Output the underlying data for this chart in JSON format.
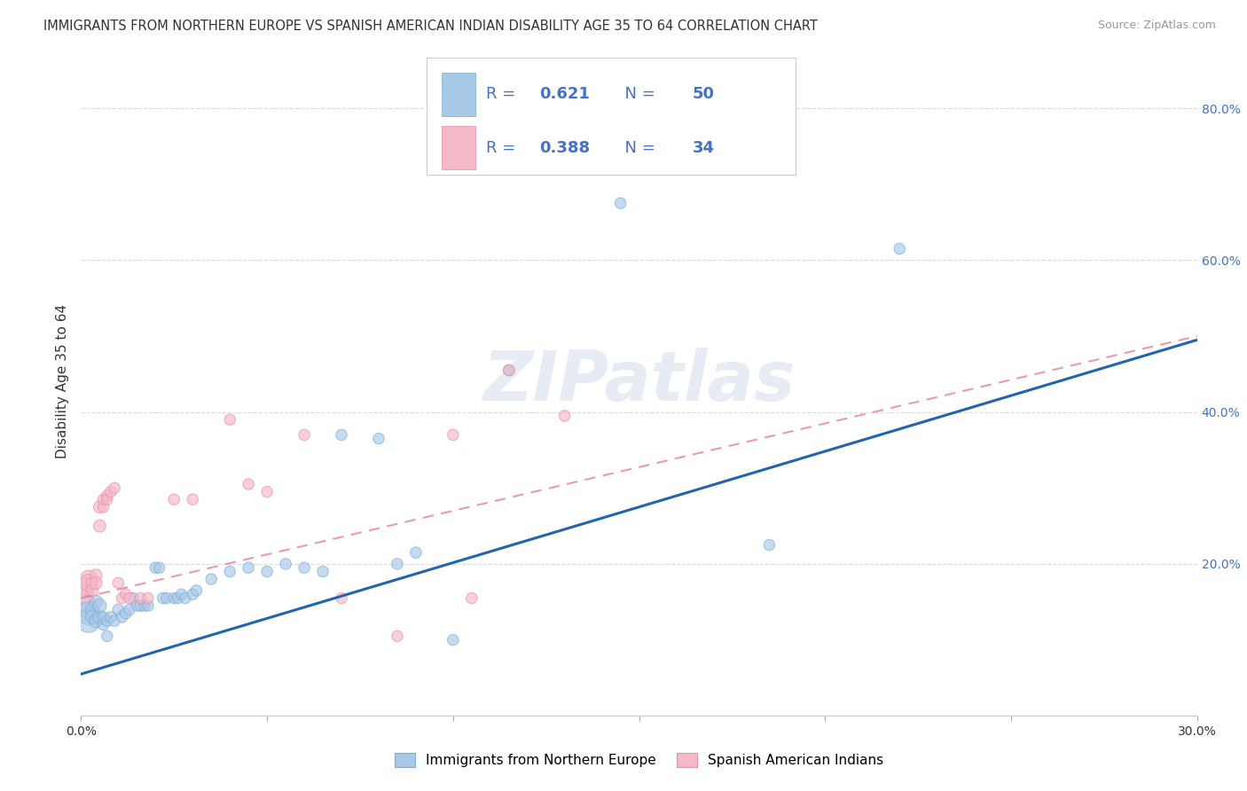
{
  "title": "IMMIGRANTS FROM NORTHERN EUROPE VS SPANISH AMERICAN INDIAN DISABILITY AGE 35 TO 64 CORRELATION CHART",
  "source": "Source: ZipAtlas.com",
  "ylabel": "Disability Age 35 to 64",
  "xlim": [
    0.0,
    0.3
  ],
  "ylim": [
    0.0,
    0.88
  ],
  "ytick_values": [
    0.0,
    0.2,
    0.4,
    0.6,
    0.8
  ],
  "xtick_values": [
    0.0,
    0.05,
    0.1,
    0.15,
    0.2,
    0.25,
    0.3
  ],
  "legend_label1": "Immigrants from Northern Europe",
  "legend_label2": "Spanish American Indians",
  "blue_color": "#a8c8e8",
  "blue_edge_color": "#7aafd4",
  "pink_color": "#f4b8c8",
  "pink_edge_color": "#e890a8",
  "blue_line_color": "#2166ac",
  "pink_line_color": "#e07090",
  "legend_text_color": "#4472c4",
  "ytick_color": "#4472c4",
  "watermark": "ZIPatlas",
  "background_color": "#ffffff",
  "grid_color": "#d8d8e8",
  "blue_scatter": [
    [
      0.001,
      0.145
    ],
    [
      0.002,
      0.135
    ],
    [
      0.002,
      0.125
    ],
    [
      0.003,
      0.14
    ],
    [
      0.003,
      0.13
    ],
    [
      0.004,
      0.125
    ],
    [
      0.004,
      0.15
    ],
    [
      0.005,
      0.13
    ],
    [
      0.005,
      0.145
    ],
    [
      0.006,
      0.12
    ],
    [
      0.006,
      0.13
    ],
    [
      0.007,
      0.125
    ],
    [
      0.007,
      0.105
    ],
    [
      0.008,
      0.13
    ],
    [
      0.009,
      0.125
    ],
    [
      0.01,
      0.14
    ],
    [
      0.011,
      0.13
    ],
    [
      0.012,
      0.135
    ],
    [
      0.013,
      0.14
    ],
    [
      0.014,
      0.155
    ],
    [
      0.015,
      0.145
    ],
    [
      0.016,
      0.145
    ],
    [
      0.017,
      0.145
    ],
    [
      0.018,
      0.145
    ],
    [
      0.02,
      0.195
    ],
    [
      0.021,
      0.195
    ],
    [
      0.022,
      0.155
    ],
    [
      0.023,
      0.155
    ],
    [
      0.025,
      0.155
    ],
    [
      0.026,
      0.155
    ],
    [
      0.027,
      0.16
    ],
    [
      0.028,
      0.155
    ],
    [
      0.03,
      0.16
    ],
    [
      0.031,
      0.165
    ],
    [
      0.035,
      0.18
    ],
    [
      0.04,
      0.19
    ],
    [
      0.045,
      0.195
    ],
    [
      0.05,
      0.19
    ],
    [
      0.055,
      0.2
    ],
    [
      0.06,
      0.195
    ],
    [
      0.065,
      0.19
    ],
    [
      0.07,
      0.37
    ],
    [
      0.08,
      0.365
    ],
    [
      0.085,
      0.2
    ],
    [
      0.09,
      0.215
    ],
    [
      0.1,
      0.1
    ],
    [
      0.115,
      0.455
    ],
    [
      0.145,
      0.675
    ],
    [
      0.185,
      0.225
    ],
    [
      0.22,
      0.615
    ]
  ],
  "pink_scatter": [
    [
      0.001,
      0.17
    ],
    [
      0.001,
      0.16
    ],
    [
      0.002,
      0.18
    ],
    [
      0.002,
      0.175
    ],
    [
      0.003,
      0.175
    ],
    [
      0.003,
      0.165
    ],
    [
      0.004,
      0.185
    ],
    [
      0.004,
      0.175
    ],
    [
      0.005,
      0.25
    ],
    [
      0.005,
      0.275
    ],
    [
      0.006,
      0.275
    ],
    [
      0.006,
      0.285
    ],
    [
      0.007,
      0.29
    ],
    [
      0.007,
      0.285
    ],
    [
      0.008,
      0.295
    ],
    [
      0.009,
      0.3
    ],
    [
      0.01,
      0.175
    ],
    [
      0.011,
      0.155
    ],
    [
      0.012,
      0.16
    ],
    [
      0.013,
      0.155
    ],
    [
      0.016,
      0.155
    ],
    [
      0.018,
      0.155
    ],
    [
      0.025,
      0.285
    ],
    [
      0.03,
      0.285
    ],
    [
      0.04,
      0.39
    ],
    [
      0.045,
      0.305
    ],
    [
      0.05,
      0.295
    ],
    [
      0.06,
      0.37
    ],
    [
      0.07,
      0.155
    ],
    [
      0.085,
      0.105
    ],
    [
      0.1,
      0.37
    ],
    [
      0.105,
      0.155
    ],
    [
      0.115,
      0.455
    ],
    [
      0.13,
      0.395
    ]
  ],
  "blue_line_x": [
    0.0,
    0.3
  ],
  "blue_line_y": [
    0.055,
    0.495
  ],
  "pink_line_x": [
    0.0,
    0.3
  ],
  "pink_line_y": [
    0.155,
    0.5
  ]
}
